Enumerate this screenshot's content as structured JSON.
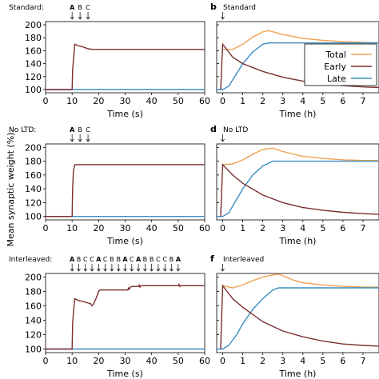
{
  "shared": {
    "ylabel": "Mean synaptic weight (%)",
    "xlabel_left": "Time (s)",
    "xlabel_right": "Time (h)",
    "legend": [
      "Total",
      "Early",
      "Late"
    ],
    "colors": {
      "Total": "#f0a050",
      "Early": "#7a2e2e",
      "Late": "#3c8dc4",
      "left_panel_line": "#7a2e2e",
      "left_panel_base": "#3c8dc4"
    }
  },
  "chart_data": [
    {
      "type": "line",
      "panel": "a-left",
      "label": "",
      "title": "Standard:",
      "x_range": [
        0,
        60
      ],
      "ylim": [
        95,
        205
      ],
      "yticks": [
        100,
        120,
        140,
        160,
        180,
        200
      ],
      "xticks": [
        0,
        10,
        20,
        30,
        40,
        50,
        60
      ],
      "markers": [
        {
          "label": "A",
          "x": 10
        },
        {
          "label": "B",
          "x": 13
        },
        {
          "label": "C",
          "x": 16
        }
      ],
      "series": [
        {
          "color_key": "left_panel_base",
          "x": [
            0,
            60
          ],
          "y": [
            100,
            100
          ]
        },
        {
          "color_key": "left_panel_line",
          "x": [
            0,
            10,
            10.2,
            10.6,
            11,
            12,
            14,
            16,
            18,
            60
          ],
          "y": [
            100,
            100,
            130,
            150,
            170,
            168,
            166,
            163,
            162,
            162
          ]
        }
      ]
    },
    {
      "type": "line",
      "panel": "b-right",
      "label": "b",
      "title": "Standard",
      "x_range": [
        -0.3,
        7.8
      ],
      "ylim": [
        95,
        205
      ],
      "xticks": [
        0,
        1,
        2,
        3,
        4,
        5,
        6,
        7
      ],
      "legend_position": "right",
      "markers": [
        {
          "label": "",
          "x": 0
        }
      ],
      "series": [
        {
          "name": "Total",
          "x": [
            0,
            0.5,
            1,
            1.5,
            2,
            2.3,
            3,
            4,
            5,
            6,
            7,
            7.8
          ],
          "y": [
            162,
            162,
            170,
            181,
            189,
            191,
            185,
            179,
            176,
            174,
            173,
            172
          ]
        },
        {
          "name": "Early",
          "x": [
            -0.1,
            0,
            0.5,
            1,
            2,
            3,
            4,
            5,
            6,
            7,
            7.8
          ],
          "y": [
            100,
            170,
            150,
            140,
            128,
            119,
            113,
            109,
            106,
            104,
            103
          ]
        },
        {
          "name": "Late",
          "x": [
            -0.3,
            0,
            0.3,
            0.7,
            1,
            1.5,
            2,
            2.3,
            7.8
          ],
          "y": [
            100,
            100,
            105,
            125,
            140,
            158,
            170,
            172,
            172
          ]
        }
      ]
    },
    {
      "type": "line",
      "panel": "c-left",
      "label": "",
      "title": "No LTD:",
      "x_range": [
        0,
        60
      ],
      "ylim": [
        95,
        205
      ],
      "yticks": [
        100,
        120,
        140,
        160,
        180,
        200
      ],
      "xticks": [
        0,
        10,
        20,
        30,
        40,
        50,
        60
      ],
      "markers": [
        {
          "label": "A",
          "x": 10
        },
        {
          "label": "B",
          "x": 13
        },
        {
          "label": "C",
          "x": 16
        }
      ],
      "series": [
        {
          "color_key": "left_panel_base",
          "x": [
            0,
            60
          ],
          "y": [
            100,
            100
          ]
        },
        {
          "color_key": "left_panel_line",
          "x": [
            0,
            10,
            10.2,
            10.5,
            11,
            60
          ],
          "y": [
            100,
            100,
            140,
            165,
            175,
            175
          ]
        }
      ]
    },
    {
      "type": "line",
      "panel": "d-right",
      "label": "d",
      "title": "No LTD",
      "x_range": [
        -0.3,
        7.8
      ],
      "ylim": [
        95,
        205
      ],
      "xticks": [
        0,
        1,
        2,
        3,
        4,
        5,
        6,
        7
      ],
      "markers": [
        {
          "label": "",
          "x": 0
        }
      ],
      "series": [
        {
          "name": "Total",
          "x": [
            0,
            0.5,
            1,
            1.5,
            2,
            2.5,
            3,
            4,
            5,
            6,
            7,
            7.8
          ],
          "y": [
            175,
            176,
            182,
            190,
            197,
            199,
            194,
            187,
            184,
            182,
            181,
            181
          ]
        },
        {
          "name": "Early",
          "x": [
            -0.1,
            0,
            0.5,
            1,
            2,
            3,
            4,
            5,
            6,
            7,
            7.8
          ],
          "y": [
            100,
            175,
            160,
            148,
            131,
            120,
            113,
            109,
            106,
            104,
            103
          ]
        },
        {
          "name": "Late",
          "x": [
            -0.3,
            0,
            0.3,
            0.7,
            1,
            1.5,
            2,
            2.5,
            7.8
          ],
          "y": [
            100,
            100,
            105,
            125,
            140,
            160,
            173,
            180,
            180
          ]
        }
      ]
    },
    {
      "type": "line",
      "panel": "e-left",
      "label": "",
      "title": "Interleaved:",
      "x_range": [
        0,
        60
      ],
      "ylim": [
        95,
        205
      ],
      "yticks": [
        100,
        120,
        140,
        160,
        180,
        200
      ],
      "xticks": [
        0,
        10,
        20,
        30,
        40,
        50,
        60
      ],
      "markers": [
        {
          "label": "A",
          "x": 10
        },
        {
          "label": "B",
          "x": 12.5
        },
        {
          "label": "C",
          "x": 15
        },
        {
          "label": "C",
          "x": 17.5
        },
        {
          "label": "A",
          "x": 20
        },
        {
          "label": "C",
          "x": 22.5
        },
        {
          "label": "B",
          "x": 25
        },
        {
          "label": "B",
          "x": 27.5
        },
        {
          "label": "A",
          "x": 30
        },
        {
          "label": "C",
          "x": 32.5
        },
        {
          "label": "A",
          "x": 35
        },
        {
          "label": "B",
          "x": 37.5
        },
        {
          "label": "B",
          "x": 40
        },
        {
          "label": "C",
          "x": 42.5
        },
        {
          "label": "C",
          "x": 45
        },
        {
          "label": "B",
          "x": 47.5
        },
        {
          "label": "A",
          "x": 50
        }
      ],
      "series": [
        {
          "color_key": "left_panel_base",
          "x": [
            0,
            60
          ],
          "y": [
            100,
            100
          ]
        },
        {
          "color_key": "left_panel_line",
          "x": [
            0,
            10,
            10.2,
            10.6,
            11,
            12,
            15,
            17,
            17.5,
            18,
            19,
            19.5,
            20,
            20.5,
            31,
            31.3,
            31.6,
            32,
            32.5,
            35,
            35.3,
            35.6,
            36,
            50,
            50.3,
            50.6,
            51,
            60
          ],
          "y": [
            100,
            100,
            135,
            155,
            170,
            168,
            165,
            163,
            160,
            162,
            170,
            175,
            180,
            182,
            182,
            185,
            183,
            186,
            187,
            187,
            189,
            186,
            188,
            188,
            190,
            187,
            188,
            188
          ]
        }
      ]
    },
    {
      "type": "line",
      "panel": "f-right",
      "label": "f",
      "title": "Interleaved",
      "x_range": [
        -0.3,
        7.8
      ],
      "ylim": [
        95,
        205
      ],
      "xticks": [
        0,
        1,
        2,
        3,
        4,
        5,
        6,
        7
      ],
      "markers": [
        {
          "label": "",
          "x": 0
        }
      ],
      "series": [
        {
          "name": "Total",
          "x": [
            0,
            0.5,
            1,
            1.5,
            2,
            2.5,
            2.8,
            3.5,
            4,
            5,
            6,
            7,
            7.8
          ],
          "y": [
            188,
            185,
            189,
            195,
            200,
            203,
            204,
            196,
            192,
            189,
            187,
            186,
            186
          ]
        },
        {
          "name": "Early",
          "x": [
            -0.1,
            0,
            0.5,
            1,
            2,
            3,
            4,
            5,
            6,
            7,
            7.8
          ],
          "y": [
            100,
            188,
            170,
            158,
            138,
            125,
            117,
            111,
            107,
            105,
            104
          ]
        },
        {
          "name": "Late",
          "x": [
            -0.3,
            0,
            0.3,
            0.7,
            1,
            1.5,
            2,
            2.5,
            2.8,
            7.8
          ],
          "y": [
            100,
            100,
            105,
            120,
            135,
            155,
            170,
            182,
            185,
            185
          ]
        }
      ]
    }
  ]
}
